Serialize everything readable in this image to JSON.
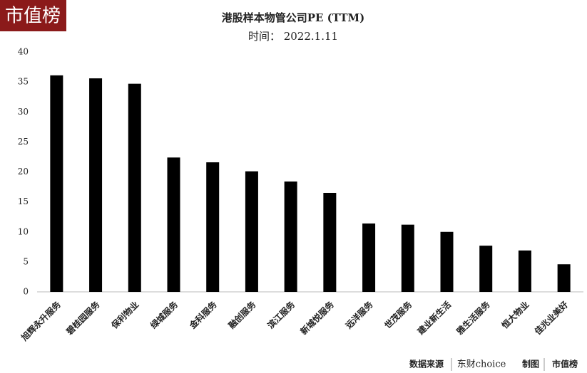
{
  "logo": "市值榜",
  "chart_data": {
    "type": "bar",
    "title": "港股样本物管公司PE (TTM)",
    "subtitle": "时间： 2022.1.11",
    "categories": [
      "旭辉永升服务",
      "碧桂园服务",
      "保利物业",
      "绿城服务",
      "金科服务",
      "融创服务",
      "滨江服务",
      "新城悦服务",
      "远洋服务",
      "世茂服务",
      "建业新生活",
      "雅生活服务",
      "恒大物业",
      "佳兆业美好"
    ],
    "values": [
      36.1,
      35.6,
      34.7,
      22.4,
      21.6,
      20.1,
      18.4,
      16.5,
      11.4,
      11.2,
      10.0,
      7.7,
      6.9,
      4.6
    ],
    "color": "#000000",
    "ylim": [
      0,
      40
    ],
    "yticks": [
      0,
      5,
      10,
      15,
      20,
      25,
      30,
      35,
      40
    ],
    "grid": false
  },
  "footer": {
    "source_label": "数据来源",
    "source": "东财choice",
    "credit_label": "制图",
    "credit": "市值榜"
  }
}
